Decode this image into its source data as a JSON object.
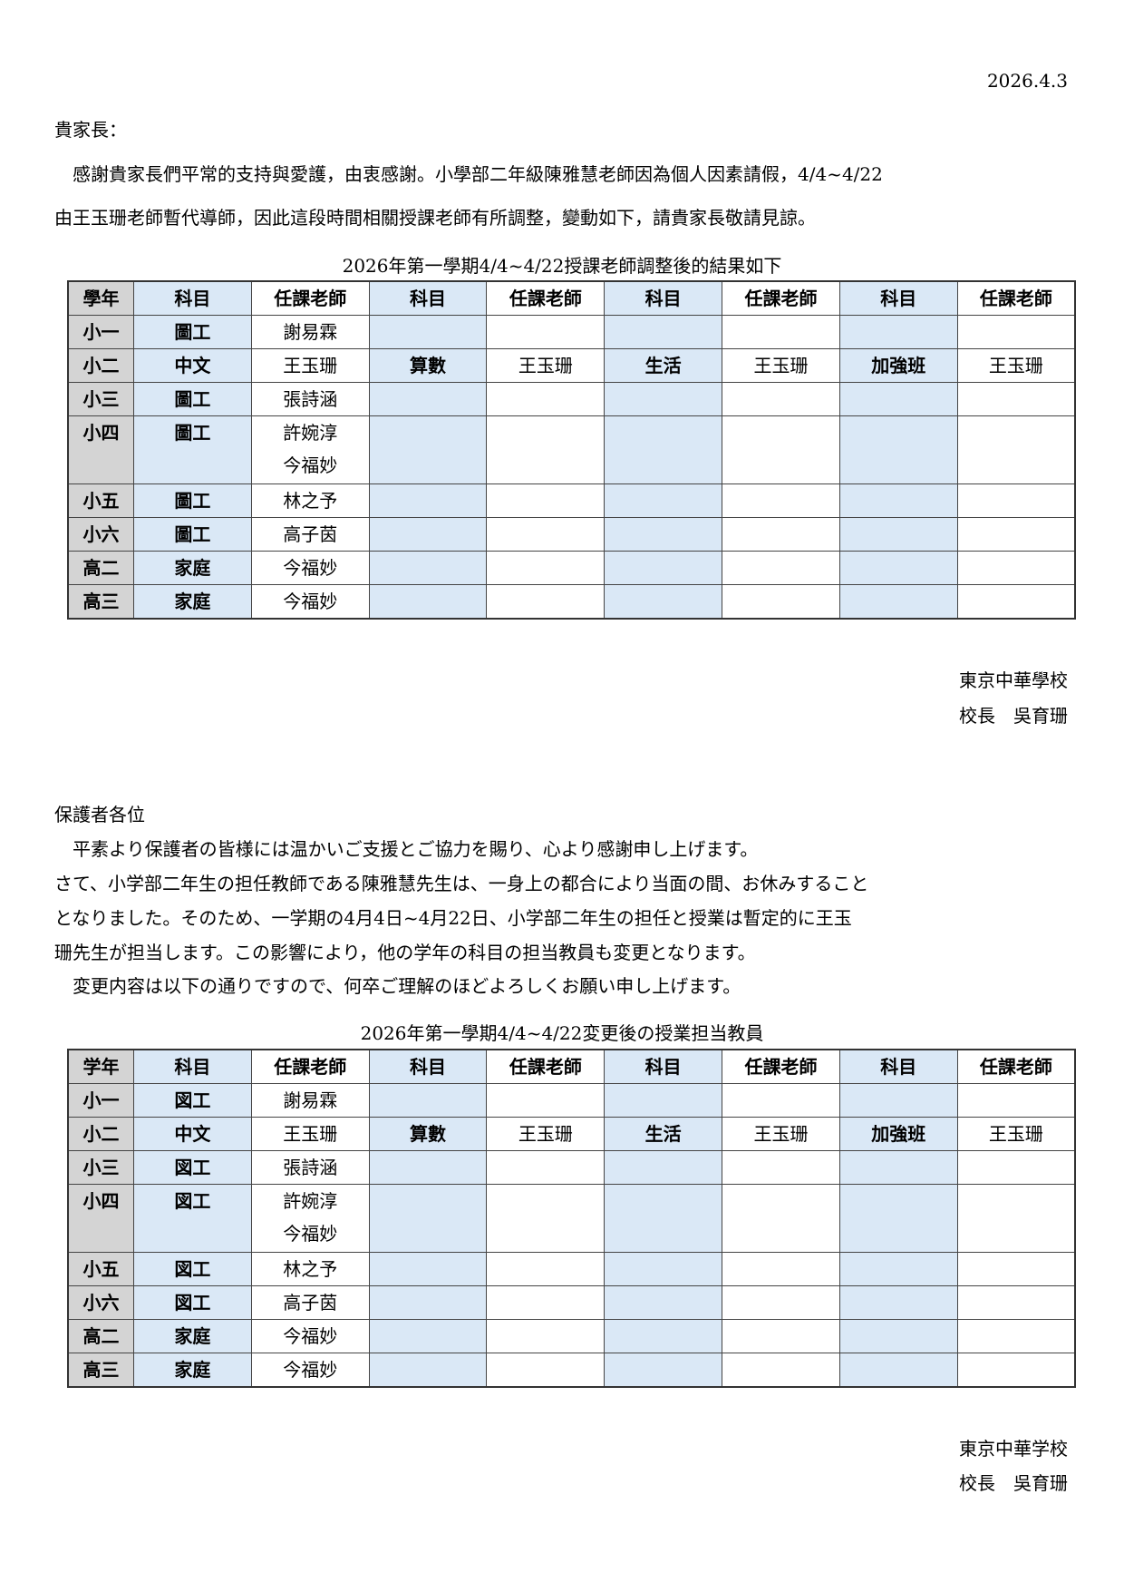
{
  "date": "2026.4.3",
  "zh": {
    "salutation": "貴家長：",
    "lines": [
      "　感謝貴家長們平常的支持與愛護，由衷感謝。小學部二年級陳雅慧老師因為個人因素請假，4/4~4/22",
      "由王玉珊老師暫代導師，因此這段時間相關授課老師有所調整，變動如下，請貴家長敬請見諒。"
    ],
    "table_title": "2026年第一學期4/4~4/22授課老師調整後的結果如下",
    "table": {
      "headers": [
        "學年",
        "科目",
        "任課老師",
        "科目",
        "任課老師",
        "科目",
        "任課老師",
        "科目",
        "任課老師"
      ],
      "rows": [
        [
          "小一",
          "圖工",
          "謝易霖",
          "",
          "",
          "",
          "",
          "",
          ""
        ],
        [
          "小二",
          "中文",
          "王玉珊",
          "算數",
          "王玉珊",
          "生活",
          "王玉珊",
          "加強班",
          "王玉珊"
        ],
        [
          "小三",
          "圖工",
          "張詩涵",
          "",
          "",
          "",
          "",
          "",
          ""
        ],
        [
          "小四",
          "圖工",
          "許婉淳\n今福妙",
          "",
          "",
          "",
          "",
          "",
          ""
        ],
        [
          "小五",
          "圖工",
          "林之予",
          "",
          "",
          "",
          "",
          "",
          ""
        ],
        [
          "小六",
          "圖工",
          "高子茵",
          "",
          "",
          "",
          "",
          "",
          ""
        ],
        [
          "高二",
          "家庭",
          "今福妙",
          "",
          "",
          "",
          "",
          "",
          ""
        ],
        [
          "高三",
          "家庭",
          "今福妙",
          "",
          "",
          "",
          "",
          "",
          ""
        ]
      ]
    },
    "school": "東京中華學校",
    "principal": "校長　吳育珊"
  },
  "ja": {
    "salutation": "保護者各位",
    "lines": [
      "　平素より保護者の皆様には温かいご支援とご協力を賜り、心より感謝申し上げます。",
      "さて、小学部二年生の担任教師である陳雅慧先生は、一身上の都合により当面の間、お休みすること",
      "となりました。そのため、一学期の4月4日~4月22日、小学部二年生の担任と授業は暫定的に王玉",
      "珊先生が担当します。この影響により，他の学年の科目の担当教員も変更となります。",
      "　変更内容は以下の通りですので、何卒ご理解のほどよろしくお願い申し上げます。"
    ],
    "table_title": "2026年第一學期4/4~4/22変更後の授業担当教員",
    "table": {
      "headers": [
        "学年",
        "科目",
        "任課老師",
        "科目",
        "任課老師",
        "科目",
        "任課老師",
        "科目",
        "任課老師"
      ],
      "rows": [
        [
          "小一",
          "図工",
          "謝易霖",
          "",
          "",
          "",
          "",
          "",
          ""
        ],
        [
          "小二",
          "中文",
          "王玉珊",
          "算數",
          "王玉珊",
          "生活",
          "王玉珊",
          "加強班",
          "王玉珊"
        ],
        [
          "小三",
          "図工",
          "張詩涵",
          "",
          "",
          "",
          "",
          "",
          ""
        ],
        [
          "小四",
          "図工",
          "許婉淳\n今福妙",
          "",
          "",
          "",
          "",
          "",
          ""
        ],
        [
          "小五",
          "図工",
          "林之予",
          "",
          "",
          "",
          "",
          "",
          ""
        ],
        [
          "小六",
          "図工",
          "高子茵",
          "",
          "",
          "",
          "",
          "",
          ""
        ],
        [
          "高二",
          "家庭",
          "今福妙",
          "",
          "",
          "",
          "",
          "",
          ""
        ],
        [
          "高三",
          "家庭",
          "今福妙",
          "",
          "",
          "",
          "",
          "",
          ""
        ]
      ]
    },
    "school": "東京中華学校",
    "principal": "校長　吳育珊"
  },
  "colors": {
    "grade_column": "#d4d4d4",
    "subject_column": "#dae8f6"
  }
}
